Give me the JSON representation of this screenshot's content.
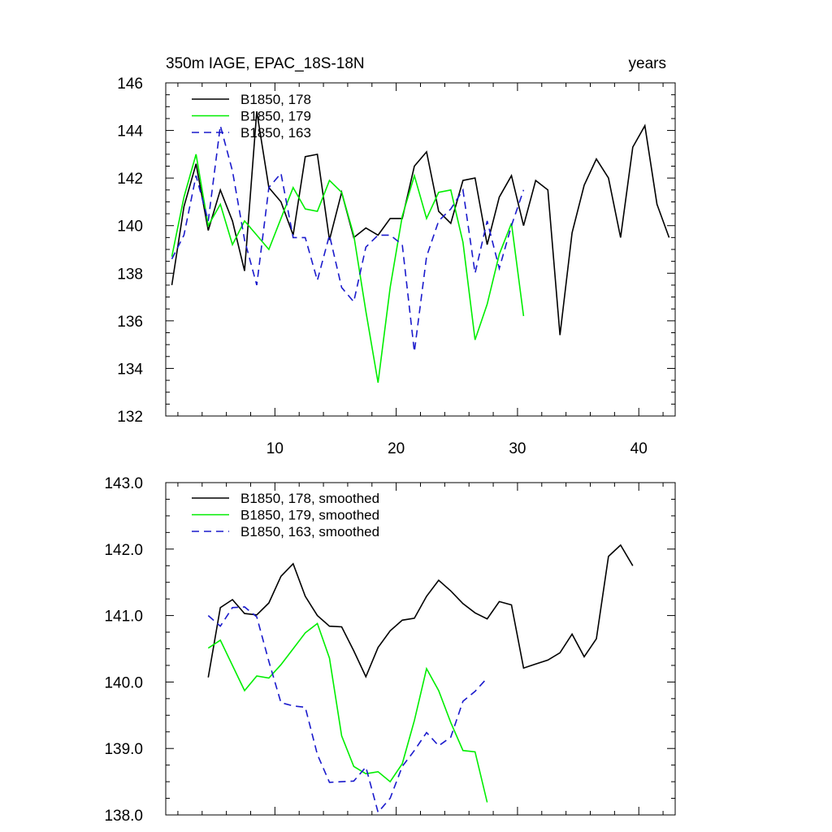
{
  "figure": {
    "title_left": "350m IAGE, EPAC_18S-18N",
    "title_right": "years"
  },
  "chart_data": [
    {
      "type": "line",
      "xlim": [
        1,
        43
      ],
      "ylim": [
        132,
        146
      ],
      "xticks": [
        10,
        20,
        30,
        40
      ],
      "xtick_labels": [
        "10",
        "20",
        "30",
        "40"
      ],
      "yticks": [
        132,
        134,
        136,
        138,
        140,
        142,
        144,
        146
      ],
      "ytick_labels": [
        "132",
        "134",
        "136",
        "138",
        "140",
        "142",
        "144",
        "146"
      ],
      "legend_position": "top-left",
      "series": [
        {
          "name": "B1850, 178",
          "color": "#000000",
          "dash": "solid",
          "x": [
            1.5,
            2.5,
            3.5,
            4.5,
            5.5,
            6.5,
            7.5,
            8.5,
            9.5,
            10.5,
            11.5,
            12.5,
            13.5,
            14.5,
            15.5,
            16.5,
            17.5,
            18.5,
            19.5,
            20.5,
            21.5,
            22.5,
            23.5,
            24.5,
            25.5,
            26.5,
            27.5,
            28.5,
            29.5,
            30.5,
            31.5,
            32.5,
            33.5,
            34.5,
            35.5,
            36.5,
            37.5,
            38.5,
            39.5,
            40.5,
            41.5,
            42.5
          ],
          "values": [
            137.5,
            140.8,
            142.6,
            139.8,
            141.5,
            140.2,
            138.1,
            144.8,
            141.6,
            141.0,
            139.6,
            142.9,
            143.0,
            139.4,
            141.4,
            139.5,
            139.9,
            139.6,
            140.3,
            140.3,
            142.5,
            143.1,
            140.6,
            140.1,
            141.9,
            142.0,
            139.2,
            141.2,
            142.1,
            140.0,
            141.9,
            141.5,
            135.4,
            139.7,
            141.7,
            142.8,
            142.0,
            139.5,
            143.3,
            144.2,
            140.9,
            139.5
          ]
        },
        {
          "name": "B1850, 179",
          "color": "#00ee00",
          "dash": "solid",
          "x": [
            1.5,
            2.5,
            3.5,
            4.5,
            5.5,
            6.5,
            7.5,
            8.5,
            9.5,
            10.5,
            11.5,
            12.5,
            13.5,
            14.5,
            15.5,
            16.5,
            17.5,
            18.5,
            19.5,
            20.5,
            21.5,
            22.5,
            23.5,
            24.5,
            25.5,
            26.5,
            27.5,
            28.5,
            29.5,
            30.5
          ],
          "values": [
            138.7,
            141.2,
            143.0,
            140.0,
            140.9,
            139.2,
            140.2,
            139.6,
            139.0,
            140.3,
            141.6,
            140.7,
            140.6,
            141.9,
            141.4,
            139.6,
            136.4,
            133.4,
            137.4,
            140.4,
            142.1,
            140.3,
            141.4,
            141.5,
            139.3,
            135.2,
            136.7,
            138.8,
            140.1,
            136.2
          ]
        },
        {
          "name": "B1850, 163",
          "color": "#1a1acc",
          "dash": "dashed",
          "x": [
            1.5,
            2.5,
            3.5,
            4.5,
            5.5,
            6.5,
            7.5,
            8.5,
            9.5,
            10.5,
            11.5,
            12.5,
            13.5,
            14.5,
            15.5,
            16.5,
            17.5,
            18.5,
            19.5,
            20.5,
            21.5,
            22.5,
            23.5,
            24.5,
            25.5,
            26.5,
            27.5,
            28.5,
            29.5,
            30.5
          ],
          "values": [
            138.6,
            139.6,
            142.1,
            140.2,
            144.2,
            142.3,
            139.4,
            137.5,
            141.6,
            142.2,
            139.5,
            139.5,
            137.7,
            139.6,
            137.4,
            136.8,
            139.1,
            139.6,
            139.6,
            139.2,
            134.7,
            138.7,
            140.2,
            140.7,
            141.5,
            138.0,
            140.2,
            138.2,
            140.0,
            141.5
          ]
        }
      ]
    },
    {
      "type": "line",
      "xlim": [
        1,
        43
      ],
      "ylim": [
        138.0,
        143.0
      ],
      "xticks": [
        10,
        20,
        30,
        40
      ],
      "xtick_labels": [
        "",
        "",
        "",
        ""
      ],
      "yticks": [
        138.0,
        139.0,
        140.0,
        141.0,
        142.0,
        143.0
      ],
      "ytick_labels": [
        "138.0",
        "139.0",
        "140.0",
        "141.0",
        "142.0",
        "143.0"
      ],
      "legend_position": "top-left",
      "series": [
        {
          "name": "B1850, 178, smoothed",
          "color": "#000000",
          "dash": "solid",
          "x": [
            4.5,
            5.5,
            6.5,
            7.5,
            8.5,
            9.5,
            10.5,
            11.5,
            12.5,
            13.5,
            14.5,
            15.5,
            16.5,
            17.5,
            18.5,
            19.5,
            20.5,
            21.5,
            22.5,
            23.5,
            24.5,
            25.5,
            26.5,
            27.5,
            28.5,
            29.5,
            30.5,
            31.5,
            32.5,
            33.5,
            34.5,
            35.5,
            36.5,
            37.5,
            38.5,
            39.5
          ],
          "values": [
            140.07,
            141.12,
            141.24,
            141.03,
            141.01,
            141.19,
            141.59,
            141.78,
            141.29,
            141.0,
            140.84,
            140.83,
            140.47,
            140.08,
            140.52,
            140.77,
            140.93,
            140.96,
            141.29,
            141.53,
            141.37,
            141.18,
            141.04,
            140.95,
            141.21,
            141.16,
            140.21,
            140.27,
            140.33,
            140.44,
            140.72,
            140.38,
            140.65,
            141.89,
            142.06,
            141.75
          ]
        },
        {
          "name": "B1850, 179, smoothed",
          "color": "#00ee00",
          "dash": "solid",
          "x": [
            4.5,
            5.5,
            6.5,
            7.5,
            8.5,
            9.5,
            10.5,
            11.5,
            12.5,
            13.5,
            14.5,
            15.5,
            16.5,
            17.5,
            18.5,
            19.5,
            20.5,
            21.5,
            22.5,
            23.5,
            24.5,
            25.5,
            26.5,
            27.5
          ],
          "values": [
            140.51,
            140.63,
            140.25,
            139.87,
            140.09,
            140.06,
            140.26,
            140.5,
            140.74,
            140.88,
            140.36,
            139.19,
            138.73,
            138.62,
            138.65,
            138.5,
            138.77,
            139.42,
            140.2,
            139.87,
            139.39,
            138.97,
            138.95,
            138.19
          ]
        },
        {
          "name": "B1850, 163, smoothed",
          "color": "#1a1acc",
          "dash": "dashed",
          "x": [
            4.5,
            5.5,
            6.5,
            7.5,
            8.5,
            9.5,
            10.5,
            11.5,
            12.5,
            13.5,
            14.5,
            15.5,
            16.5,
            17.5,
            18.5,
            19.5,
            20.5,
            21.5,
            22.5,
            23.5,
            24.5,
            25.5,
            26.5,
            27.5
          ],
          "values": [
            141.0,
            140.84,
            141.12,
            141.13,
            140.98,
            140.31,
            139.69,
            139.64,
            139.62,
            138.91,
            138.49,
            138.5,
            138.51,
            138.72,
            138.04,
            138.25,
            138.73,
            138.97,
            139.24,
            139.04,
            139.17,
            139.71,
            139.86,
            140.06
          ]
        }
      ]
    }
  ]
}
